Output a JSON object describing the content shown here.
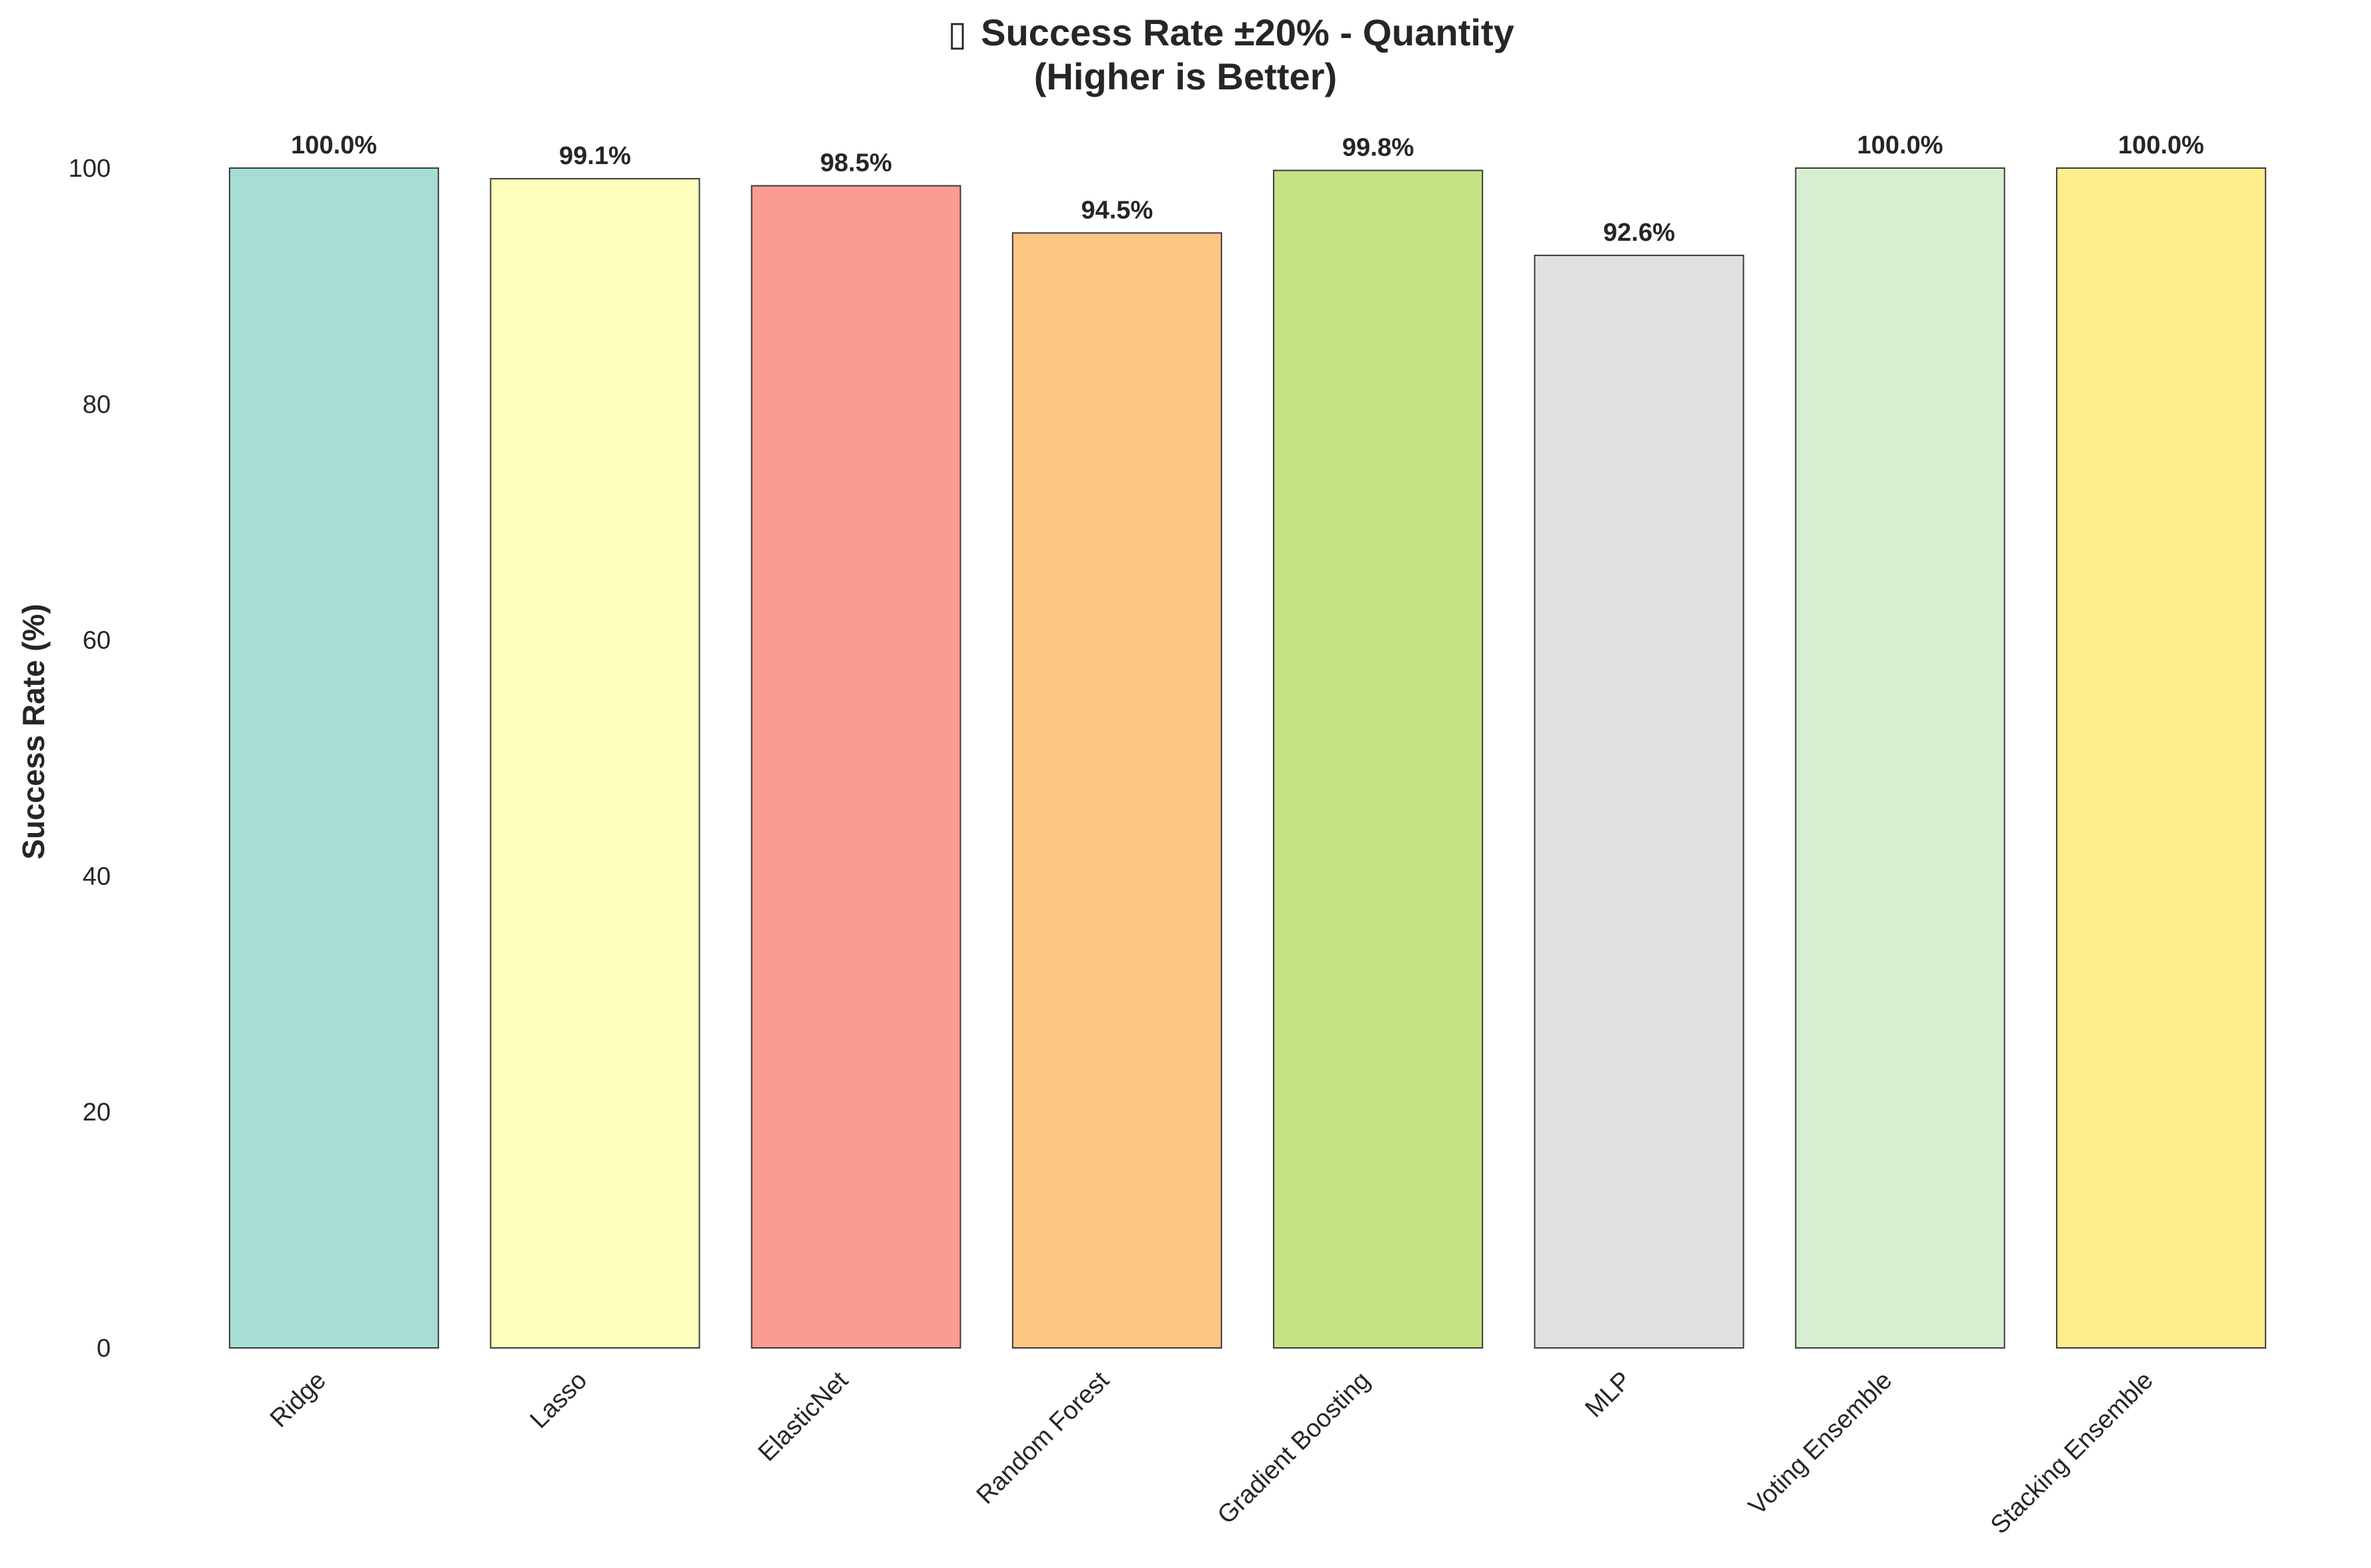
{
  "chart_data": {
    "type": "bar",
    "title_icon": "chart-icon",
    "title": "Success Rate ±20% - Quantity",
    "subtitle": "(Higher is Better)",
    "xlabel": "",
    "ylabel": "Success Rate (%)",
    "ylim": [
      0,
      100
    ],
    "yticks": [
      0,
      20,
      40,
      60,
      80,
      100
    ],
    "grid": false,
    "categories": [
      "Ridge",
      "Lasso",
      "ElasticNet",
      "Random Forest",
      "Gradient Boosting",
      "MLP",
      "Voting Ensemble",
      "Stacking Ensemble"
    ],
    "values": [
      100.0,
      99.1,
      98.5,
      94.5,
      99.8,
      92.6,
      100.0,
      100.0
    ],
    "value_labels": [
      "100.0%",
      "99.1%",
      "98.5%",
      "94.5%",
      "99.8%",
      "92.6%",
      "100.0%",
      "100.0%"
    ],
    "colors": [
      "#a6ddd4",
      "#ffffbe",
      "#fa9c90",
      "#fdc582",
      "#c4e385",
      "#e0e0e0",
      "#d7efd0",
      "#ffee8a"
    ]
  }
}
